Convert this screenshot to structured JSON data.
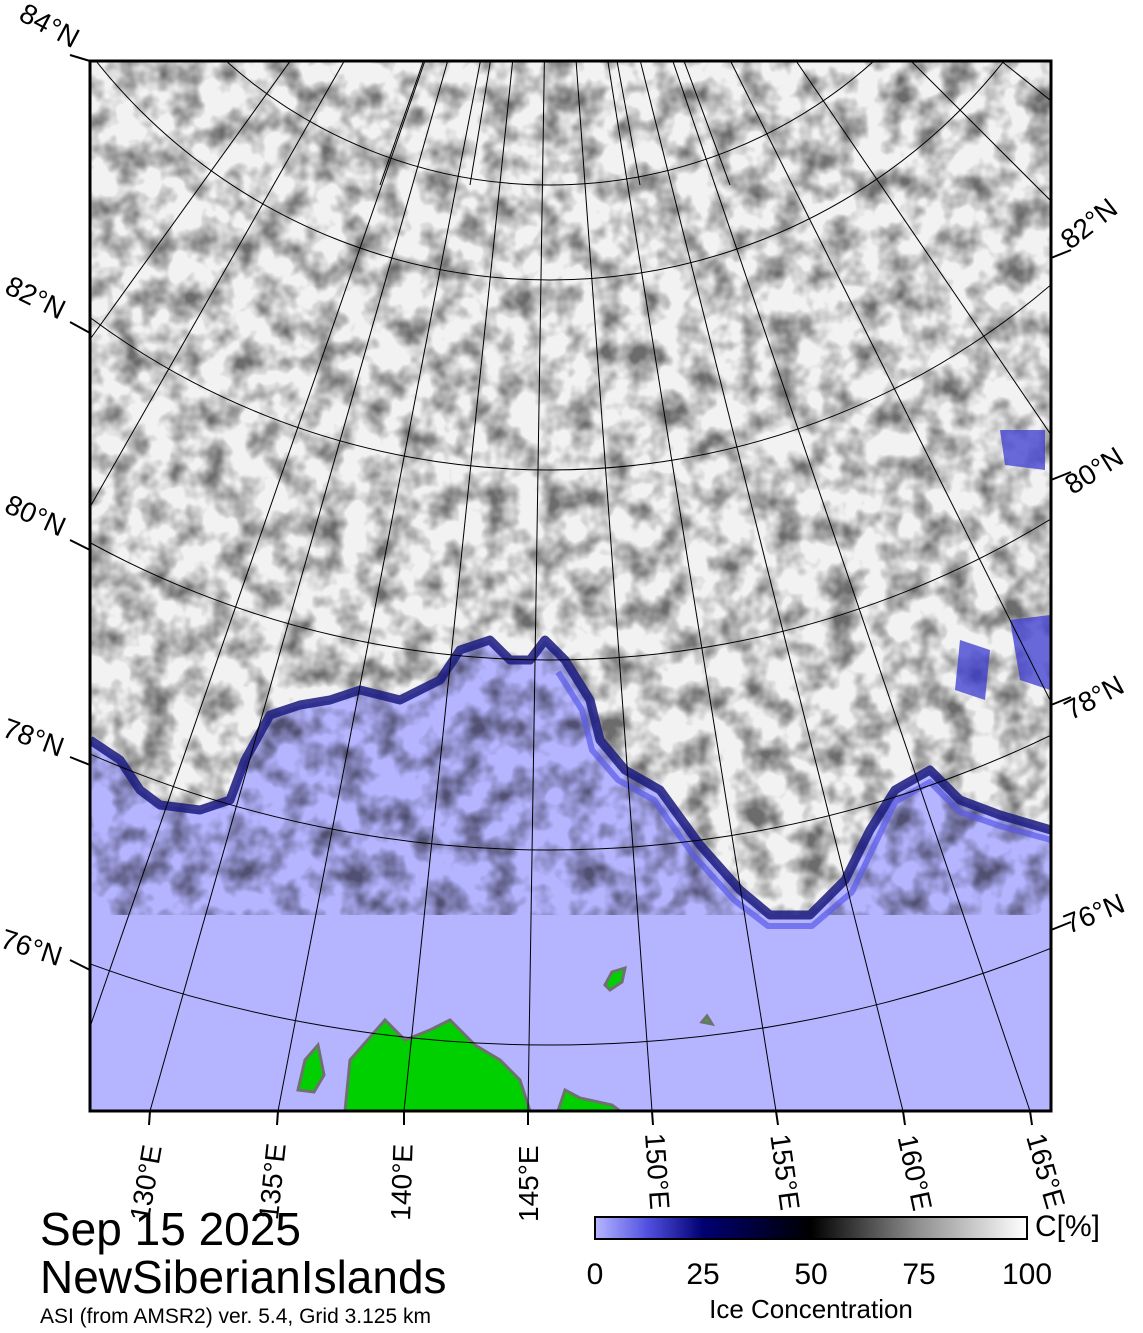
{
  "header": {
    "date": "Sep 15 2025",
    "region": "NewSiberianIslands",
    "subtitle": "ASI (from AMSR2) ver. 5.4,  Grid 3.125 km"
  },
  "latitude_labels": {
    "left": [
      "84°N",
      "82°N",
      "80°N",
      "78°N",
      "76°N"
    ],
    "right": [
      "82°N",
      "80°N",
      "78°N",
      "76°N"
    ]
  },
  "longitude_labels": [
    "130°E",
    "135°E",
    "140°E",
    "145°E",
    "150°E",
    "155°E",
    "160°E",
    "165°E"
  ],
  "colorbar": {
    "unit": "C[%]",
    "ticks": [
      "0",
      "25",
      "50",
      "75",
      "100"
    ],
    "title": "Ice Concentration",
    "colors": {
      "open_water": "#b4b4ff",
      "low": "#5050e0",
      "mid_low": "#000070",
      "mid": "#000000",
      "high": "#909090",
      "full": "#ffffff"
    }
  },
  "colors": {
    "land": "#00d000",
    "water": "#b4b4ff",
    "ice": "#f0f0f0",
    "graticule": "#000000"
  }
}
